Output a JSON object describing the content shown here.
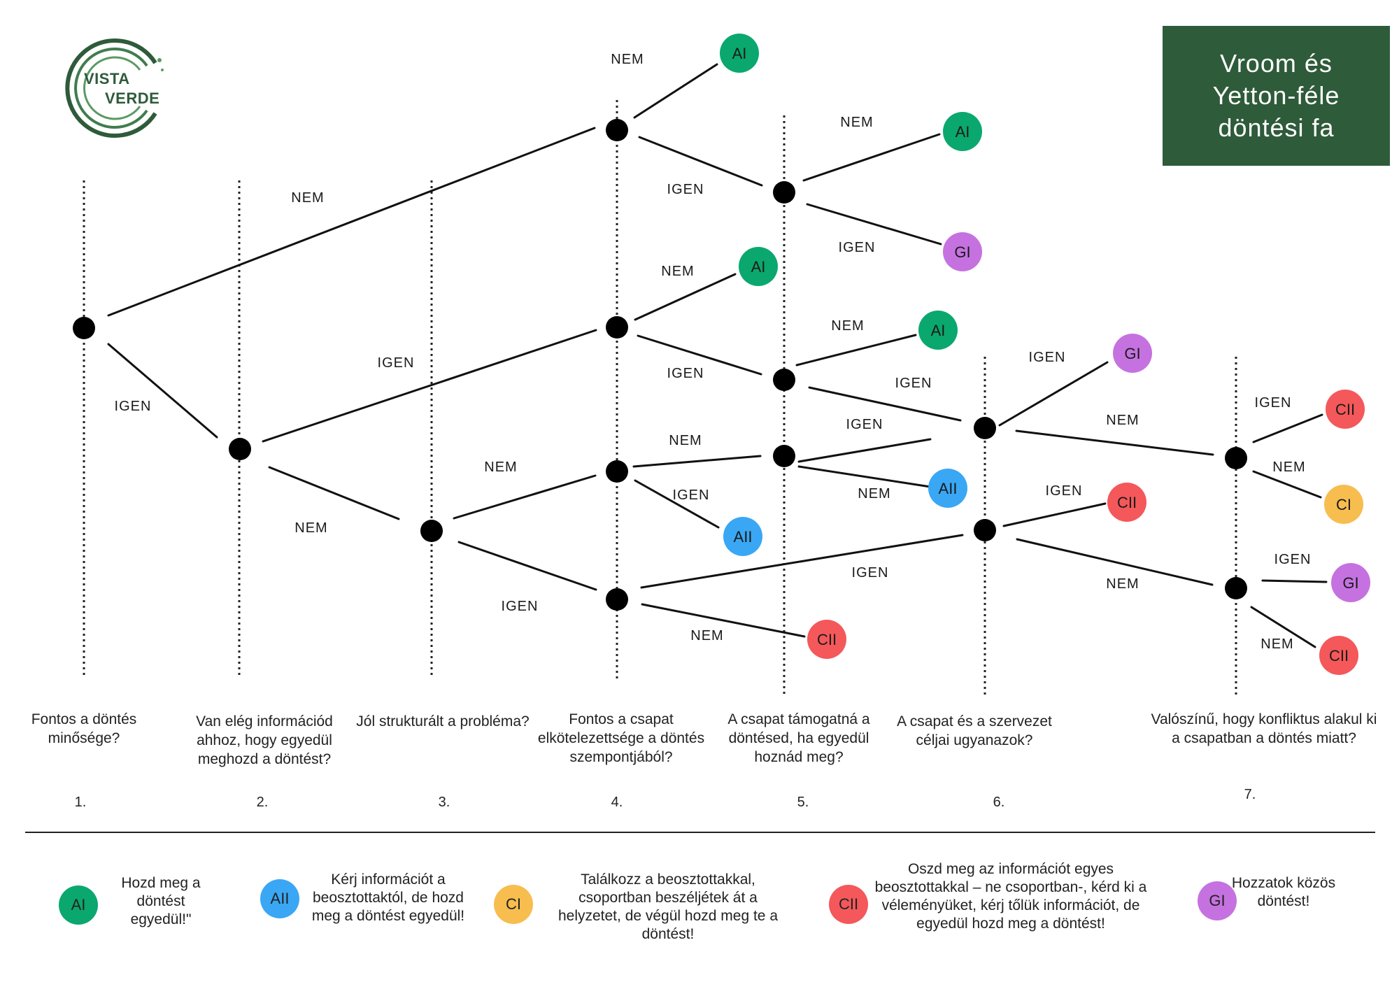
{
  "title": "Vroom és\nYetton-féle\ndöntési fa",
  "logo": {
    "line1": "VISTA",
    "line2": "VERDE"
  },
  "colors": {
    "AI": "#0aa86e",
    "AII": "#3aa7f5",
    "CI": "#f7bd4f",
    "CII": "#f4585a",
    "GI": "#c572e0",
    "brand": "#2e5b3a"
  },
  "questions": [
    {
      "num": "1.",
      "text": "Fontos a döntés minősége?"
    },
    {
      "num": "2.",
      "text": "Van elég információd ahhoz, hogy egyedül meghozd a döntést?"
    },
    {
      "num": "3.",
      "text": "Jól strukturált a probléma?"
    },
    {
      "num": "4.",
      "text": "Fontos a csapat elkötelezettsége a döntés szempontjából?"
    },
    {
      "num": "5.",
      "text": "A csapat támogatná a döntésed, ha egyedül hoznád meg?"
    },
    {
      "num": "6.",
      "text": "A csapat és a szervezet céljai ugyanazok?"
    },
    {
      "num": "7.",
      "text": "Valószínű, hogy konfliktus alakul ki a csapatban a döntés miatt?"
    }
  ],
  "edge_labels": [
    "NEM",
    "IGEN",
    "IGEN",
    "NEM",
    "NEM",
    "IGEN",
    "NEM",
    "IGEN",
    "NEM",
    "IGEN",
    "NEM",
    "IGEN",
    "NEM",
    "IGEN",
    "NEM",
    "IGEN",
    "NEM",
    "IGEN",
    "IGEN",
    "NEM",
    "IGEN",
    "NEM",
    "IGEN",
    "NEM",
    "IGEN",
    "NEM",
    "IGEN",
    "NEM"
  ],
  "outcome_labels": [
    "AI",
    "AI",
    "GI",
    "AI",
    "AI",
    "GI",
    "AII",
    "AII",
    "CII",
    "CII",
    "CII",
    "CI",
    "GI",
    "CII"
  ],
  "legend": [
    {
      "code": "AI",
      "text": "Hozd meg a döntést egyedül!\""
    },
    {
      "code": "AII",
      "text": "Kérj információt a beosztottaktól, de hozd meg a döntést egyedül!"
    },
    {
      "code": "CI",
      "text": "Találkozz a beosztottakkal, csoportban beszéljétek át a helyzetet, de végül hozd meg te a döntést!"
    },
    {
      "code": "CII",
      "text": "Oszd meg az információt egyes beosztottakkal – ne csoportban-, kérd ki a véleményüket, kérj tőlük információt, de egyedül hozd meg a döntést!"
    },
    {
      "code": "GI",
      "text": "Hozzatok közös döntést!"
    }
  ]
}
